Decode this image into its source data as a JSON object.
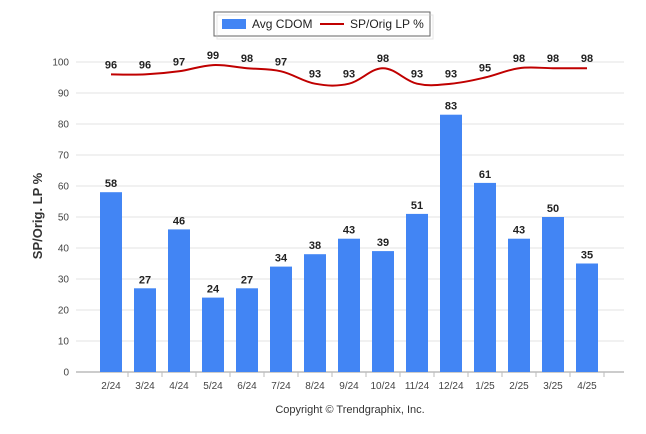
{
  "chart_data": {
    "type": "bar",
    "categories": [
      "2/24",
      "3/24",
      "4/24",
      "5/24",
      "6/24",
      "7/24",
      "8/24",
      "9/24",
      "10/24",
      "11/24",
      "12/24",
      "1/25",
      "2/25",
      "3/25",
      "4/25"
    ],
    "series": [
      {
        "name": "Avg CDOM",
        "type": "bar",
        "color": "#4285f4",
        "values": [
          58,
          27,
          46,
          24,
          27,
          34,
          38,
          43,
          39,
          51,
          83,
          61,
          43,
          50,
          35
        ]
      },
      {
        "name": "SP/Orig LP %",
        "type": "line",
        "color": "#c00000",
        "values": [
          96,
          96,
          97,
          99,
          98,
          97,
          93,
          93,
          98,
          93,
          93,
          95,
          98,
          98,
          98
        ]
      }
    ],
    "ylabel": "SP/Orig. LP %",
    "xlabel": "",
    "ylim": [
      0,
      100
    ],
    "yticks": [
      0,
      10,
      20,
      30,
      40,
      50,
      60,
      70,
      80,
      90,
      100
    ],
    "grid": true,
    "legend_position": "top-center"
  },
  "footer": {
    "copyright": "Copyright © Trendgraphix, Inc."
  }
}
